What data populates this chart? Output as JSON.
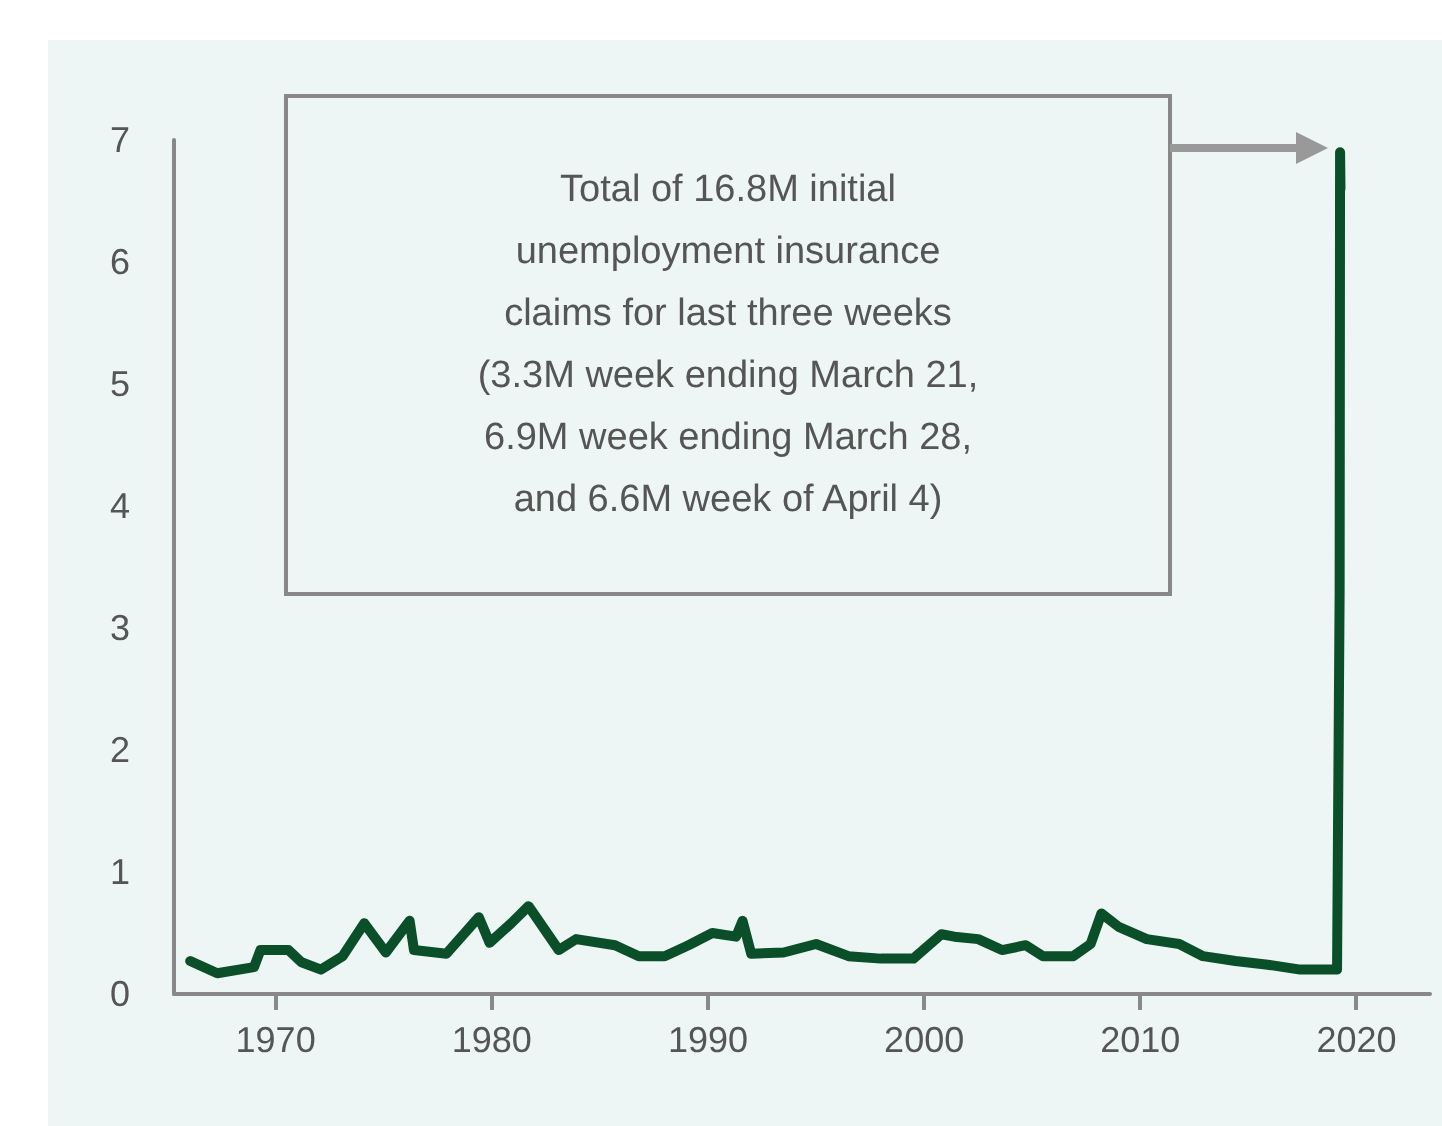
{
  "chart_data": {
    "type": "line",
    "annotations": [
      "Total of 16.8M initial\nunemployment insurance\nclaims for last three weeks\n(3.3M week ending March 21,\n6.9M week ending March 28,\nand 6.6M week of April 4)"
    ],
    "x": [
      1966.05,
      1967.3,
      1969,
      1969.3,
      1970.6,
      1971.2,
      1972.1,
      1973.1,
      1974.1,
      1975.1,
      1976.2,
      1976.4,
      1977.9,
      1979.4,
      1979.9,
      1980.9,
      1981.7,
      1983.1,
      1983.9,
      1985.7,
      1986.8,
      1988,
      1989.1,
      1990.2,
      1991.3,
      1991.6,
      1992,
      1993.5,
      1995,
      1996.5,
      1998,
      1999.5,
      2000.8,
      2001.4,
      2002.5,
      2003.6,
      2004.7,
      2005.5,
      2006.9,
      2007.7,
      2008.2,
      2009,
      2010.3,
      2011.8,
      2012.9,
      2014.4,
      2015.9,
      2017.4,
      2019.1,
      2019.22,
      2019.24,
      2019.26
    ],
    "series": [
      {
        "color": "#0a4f2a",
        "values": [
          0.27,
          0.17,
          0.22,
          0.36,
          0.36,
          0.26,
          0.2,
          0.31,
          0.58,
          0.34,
          0.6,
          0.36,
          0.33,
          0.63,
          0.42,
          0.58,
          0.72,
          0.36,
          0.45,
          0.4,
          0.31,
          0.31,
          0.4,
          0.5,
          0.47,
          0.6,
          0.33,
          0.34,
          0.41,
          0.31,
          0.29,
          0.29,
          0.49,
          0.47,
          0.45,
          0.36,
          0.4,
          0.31,
          0.31,
          0.41,
          0.66,
          0.55,
          0.45,
          0.41,
          0.31,
          0.27,
          0.24,
          0.2,
          0.2,
          3.3,
          6.9,
          6.6
        ]
      }
    ],
    "xlim": [
      1965.3,
      2023.4
    ],
    "xticks": [
      1970,
      1980,
      1990,
      2000,
      2010,
      2020
    ],
    "ylim": [
      0,
      7
    ],
    "yticks": [
      0,
      1,
      2,
      3,
      4,
      5,
      6,
      7
    ],
    "grid": false,
    "marker": "none",
    "line_style": "solid"
  }
}
